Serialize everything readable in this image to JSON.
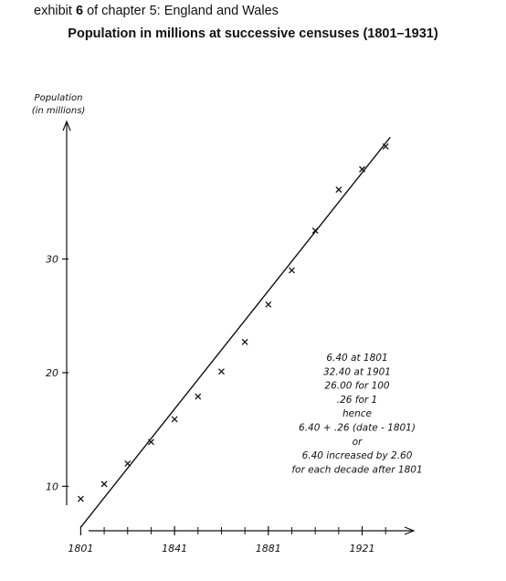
{
  "header": {
    "exhibit_prefix": "exhibit",
    "exhibit_number": "6",
    "exhibit_suffix": "of chapter 5: England and Wales"
  },
  "chart_data": {
    "type": "scatter",
    "title": "Population in millions at successive censuses (1801–1931)",
    "ylabel_line1": "Population",
    "ylabel_line2": "(in millions)",
    "xlabel": "",
    "xlim": [
      1795,
      1943
    ],
    "ylim": [
      4,
      42.5
    ],
    "x_ticks": [
      1801,
      1841,
      1881,
      1921
    ],
    "x_tick_labels": [
      "1801",
      "1841",
      "1881",
      "1921"
    ],
    "x_minor_ticks": [
      1811,
      1821,
      1831,
      1851,
      1861,
      1871,
      1891,
      1901,
      1911,
      1931
    ],
    "y_ticks": [
      10,
      20,
      30
    ],
    "y_tick_labels": [
      "10",
      "20",
      "30"
    ],
    "grid": false,
    "series": [
      {
        "marker": "x",
        "x": [
          1801,
          1811,
          1821,
          1831,
          1841,
          1851,
          1861,
          1871,
          1881,
          1891,
          1901,
          1911,
          1921,
          1931
        ],
        "y": [
          8.9,
          10.2,
          12.0,
          13.9,
          15.9,
          17.9,
          20.1,
          22.7,
          26.0,
          29.0,
          32.5,
          36.1,
          37.9,
          39.9
        ]
      }
    ],
    "fit_line": {
      "intercept_at_1801": 6.4,
      "slope_per_year": 0.26,
      "x_from": 1801,
      "x_to": 1933
    },
    "annotation_lines": [
      "6.40 at 1801",
      "32.40 at 1901",
      "26.00 for 100",
      ".26 for 1",
      "hence",
      "6.40 + .26 (date - 1801)",
      "or",
      "6.40 increased by 2.60",
      "for each decade after 1801"
    ]
  }
}
